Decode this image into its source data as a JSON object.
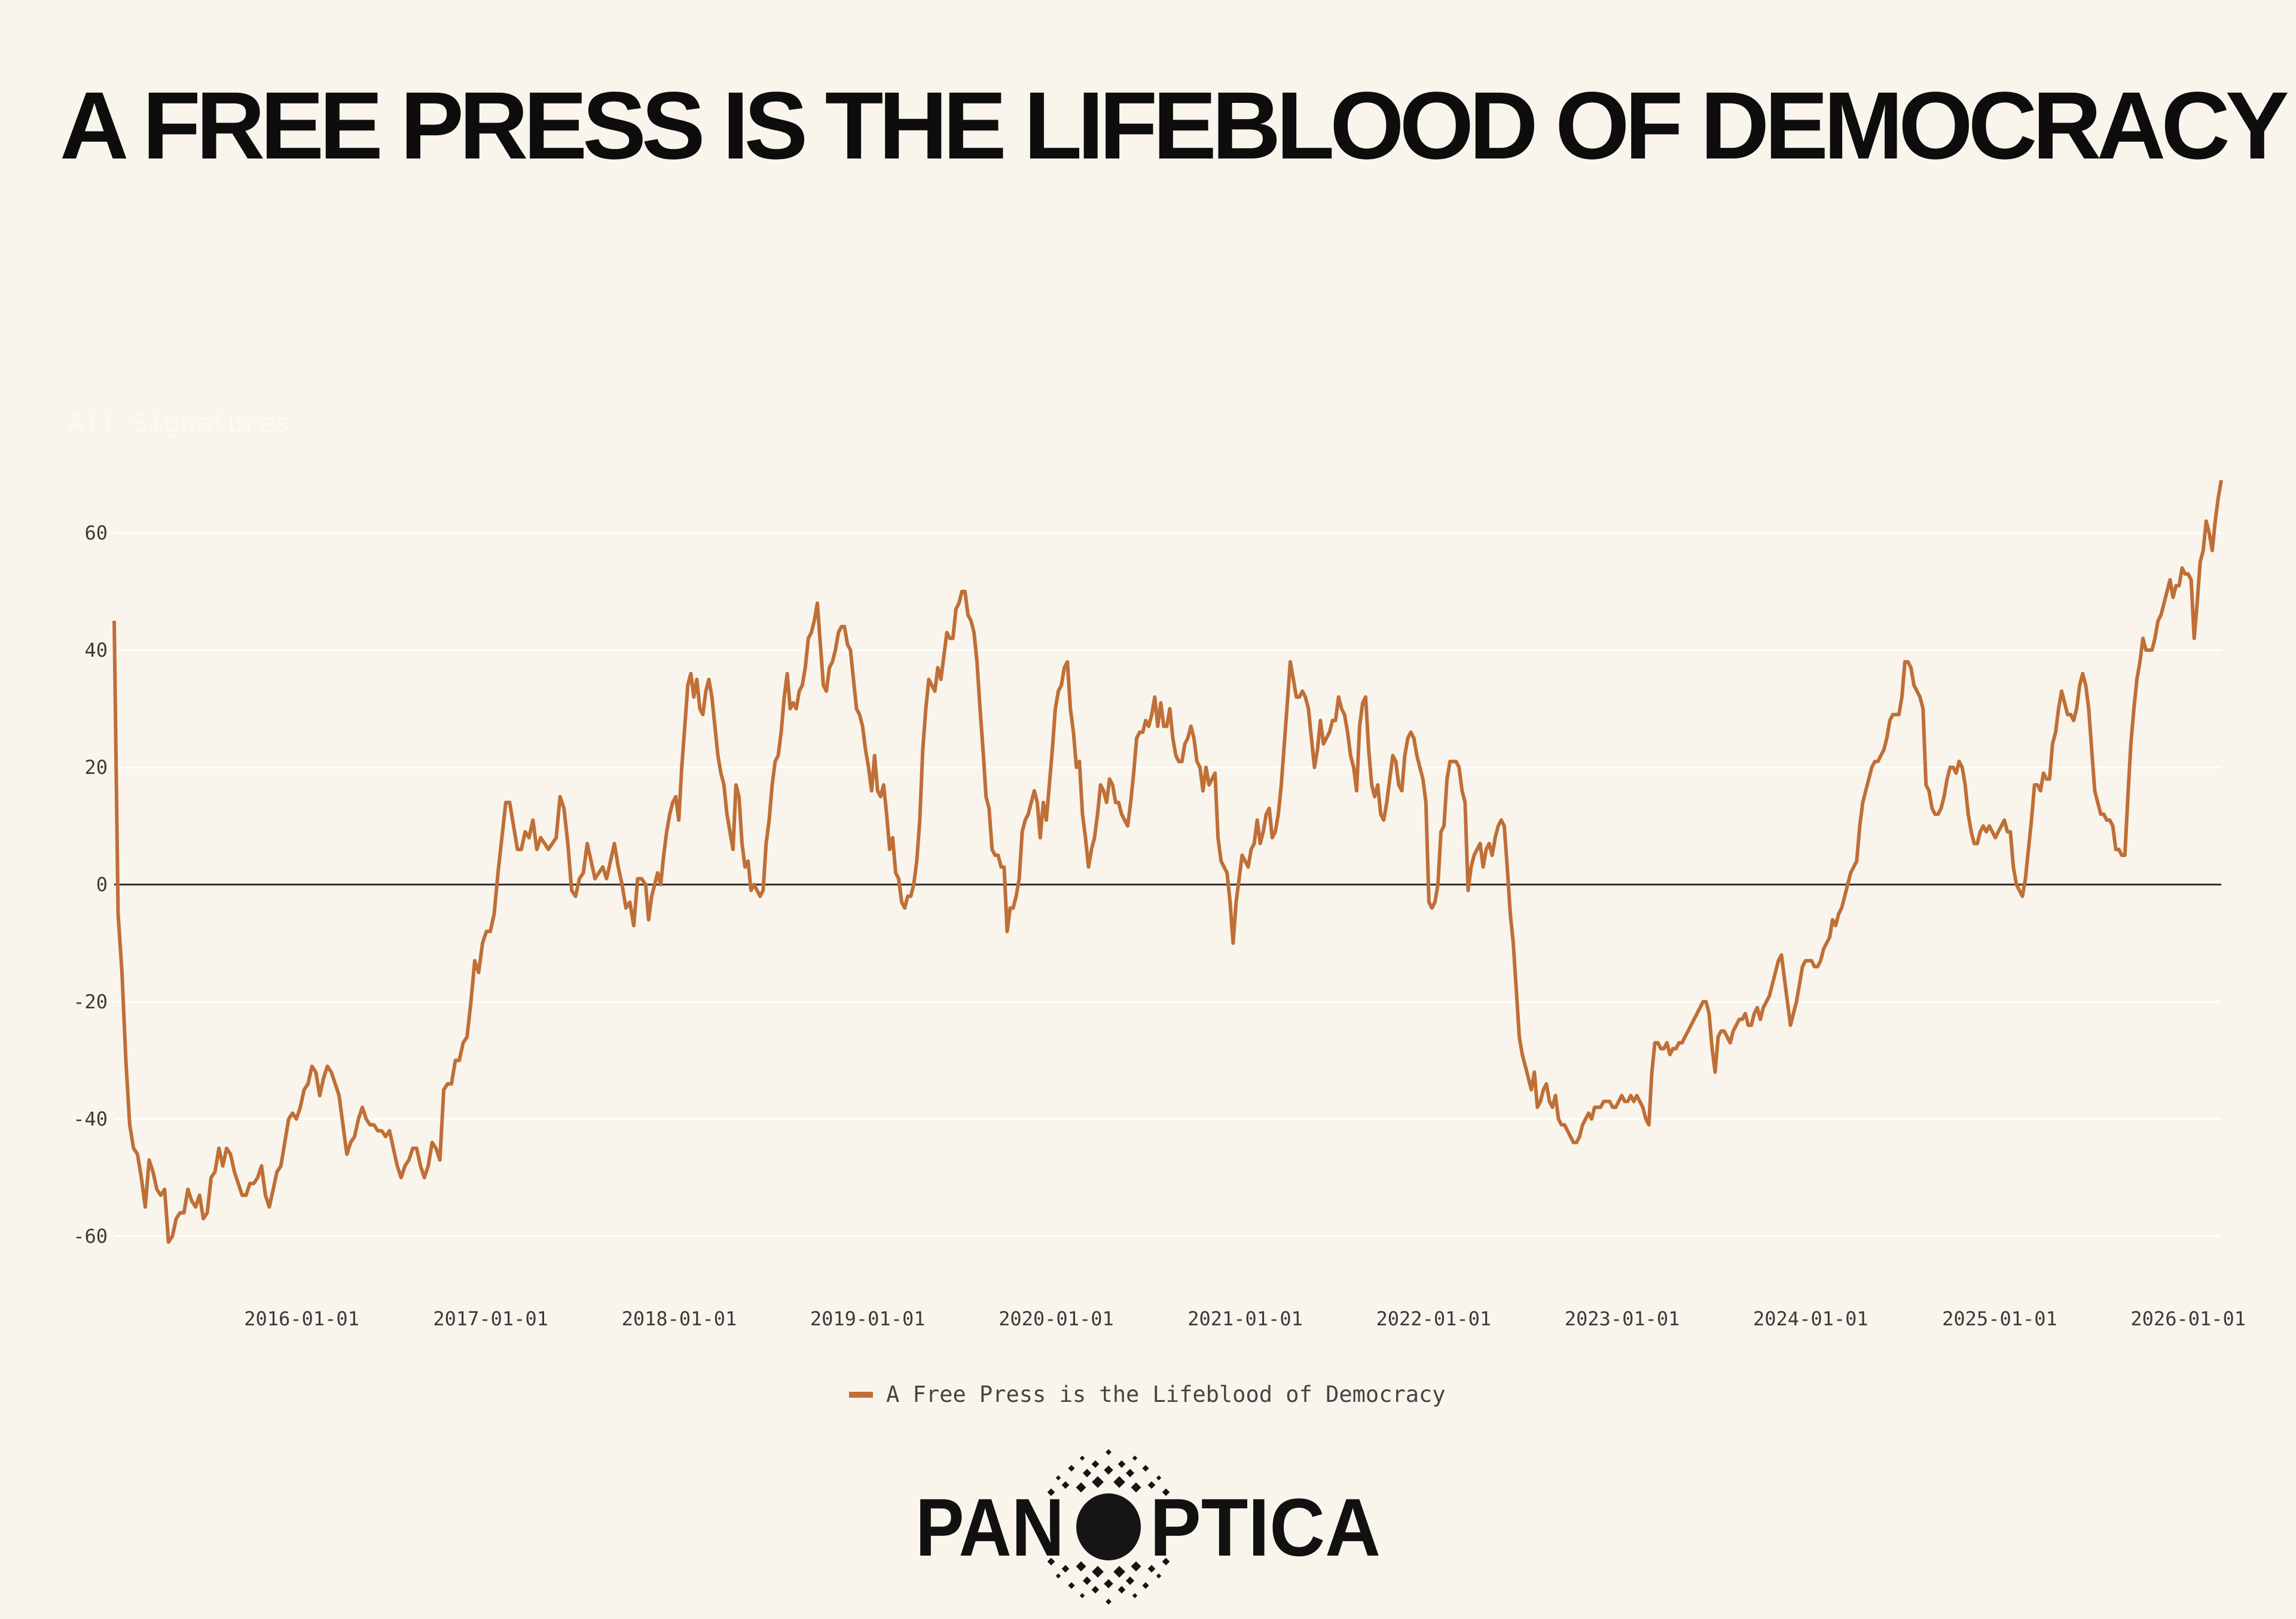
{
  "title": "A FREE PRESS IS THE LIFEBLOOD OF DEMOCRACY",
  "logo": {
    "text": "PANOPTICA"
  },
  "colors": {
    "background": "#f9f5ec",
    "series": "#bf6f37",
    "zero_line": "#2b2b2b",
    "grid": "#ffffff"
  },
  "chart_data": {
    "type": "line",
    "title": "",
    "xlabel": "",
    "ylabel": "All Signatures",
    "xlim": [
      "2015-01-03",
      "2026-03-06"
    ],
    "ylim": [
      -68,
      72
    ],
    "grid": true,
    "legend_position": "bottom-center",
    "x_ticks": [
      "2016-01-01",
      "2017-01-01",
      "2018-01-01",
      "2019-01-01",
      "2020-01-01",
      "2021-01-01",
      "2022-01-01",
      "2023-01-01",
      "2024-01-01",
      "2025-01-01",
      "2026-01-01"
    ],
    "y_ticks": [
      60,
      40,
      20,
      0,
      -20,
      -40,
      -60
    ],
    "series": [
      {
        "name": "A Free Press is the Lifeblood of Democracy",
        "segments": [
          {
            "start": "2015-01-03",
            "end": "2017-10-20",
            "values": [
              45,
              -5,
              -15,
              -30,
              -41,
              -45,
              -46,
              -50,
              -55,
              -47,
              -49,
              -52,
              -53,
              -52,
              -61,
              -60,
              -57,
              -56,
              -56,
              -52,
              -54,
              -55,
              -53,
              -57,
              -56,
              -50,
              -49,
              -45,
              -48,
              -45,
              -46,
              -49,
              -51,
              -53,
              -53,
              -51,
              -51,
              -50,
              -48,
              -53,
              -55,
              -52,
              -49,
              -48,
              -44,
              -40,
              -39,
              -40,
              -38,
              -35,
              -34,
              -31,
              -32,
              -36,
              -33,
              -31,
              -32,
              -34,
              -36,
              -41,
              -46,
              -44,
              -43,
              -40,
              -38,
              -40,
              -41,
              -41,
              -42,
              -42,
              -43,
              -42,
              -45,
              -48,
              -50,
              -48,
              -47,
              -45,
              -45,
              -48,
              -50,
              -48,
              -44,
              -45,
              -47,
              -35,
              -34,
              -34,
              -30,
              -30,
              -27,
              -26,
              -20,
              -13,
              -15,
              -10,
              -8,
              -8,
              -5,
              2,
              8,
              14,
              14,
              10,
              6,
              6,
              9,
              8,
              11,
              6,
              8,
              7,
              6,
              7,
              8,
              15,
              13,
              7,
              -1,
              -2,
              1,
              2,
              7,
              4,
              1,
              2,
              3,
              1,
              4,
              7,
              3,
              0,
              -4,
              -3,
              -7,
              1,
              1
            ]
          },
          {
            "start": "2017-10-28",
            "end": "2026-03-06",
            "values": [
              0,
              -6,
              -2,
              0,
              2,
              0,
              5,
              9,
              12,
              14,
              15,
              11,
              20,
              27,
              34,
              36,
              32,
              35,
              30,
              29,
              33,
              35,
              32,
              27,
              22,
              19,
              17,
              12,
              9,
              6,
              17,
              15,
              7,
              3,
              4,
              -1,
              0,
              -1,
              -2,
              -1,
              7,
              11,
              17,
              21,
              22,
              26,
              32,
              36,
              30,
              31,
              30,
              33,
              34,
              37,
              42,
              43,
              45,
              48,
              41,
              34,
              33,
              37,
              38,
              40,
              43,
              44,
              44,
              41,
              40,
              35,
              30,
              29,
              27,
              23,
              20,
              16,
              22,
              16,
              15,
              17,
              12,
              6,
              8,
              2,
              1,
              -3,
              -4,
              -2,
              -2,
              0,
              4,
              11,
              23,
              30,
              35,
              34,
              33,
              37,
              35,
              39,
              43,
              42,
              42,
              47,
              48,
              50,
              50,
              46,
              45,
              43,
              38,
              30,
              23,
              15,
              13,
              6,
              5,
              5,
              3,
              3,
              -8,
              -4,
              -4,
              -2,
              1,
              9,
              11,
              12,
              14,
              16,
              14,
              8,
              14,
              11,
              17,
              23,
              30,
              33,
              34,
              37,
              38,
              30,
              26,
              20,
              21,
              12,
              8,
              3,
              6,
              8,
              12,
              17,
              16,
              14,
              18,
              17,
              14,
              14,
              12,
              11,
              10,
              14,
              19,
              25,
              26,
              26,
              28,
              27,
              29,
              32,
              27,
              31,
              27,
              27,
              30,
              25,
              22,
              21,
              21,
              24,
              25,
              27,
              25,
              21,
              20,
              16,
              20,
              17,
              18,
              19,
              8,
              4,
              3,
              2,
              -3,
              -10,
              -3,
              1,
              5,
              4,
              3,
              6,
              7,
              11,
              7,
              9,
              12,
              13,
              8,
              9,
              12,
              17,
              24,
              31,
              38,
              35,
              32,
              32,
              33,
              32,
              30,
              25,
              20,
              23,
              28,
              24,
              25,
              26,
              28,
              28,
              32,
              30,
              29,
              26,
              22,
              20,
              16,
              27,
              31,
              32,
              23,
              17,
              15,
              17,
              12,
              11,
              14,
              18,
              22,
              21,
              17,
              16,
              22,
              25,
              26,
              25,
              22,
              20,
              18,
              14,
              -3,
              -4,
              -3,
              0,
              9,
              10,
              18,
              21,
              21,
              21,
              20,
              16,
              14,
              -1,
              3,
              5,
              6,
              7,
              3,
              6,
              7,
              5,
              8,
              10,
              11,
              10,
              3,
              -5,
              -10,
              -18,
              -26,
              -29,
              -31,
              -33,
              -35,
              -32,
              -38,
              -37,
              -35,
              -34,
              -37,
              -38,
              -36,
              -40,
              -41,
              -41,
              -42,
              -43,
              -44,
              -44,
              -43,
              -41,
              -40,
              -39,
              -40,
              -38,
              -38,
              -38,
              -37,
              -37,
              -37,
              -38,
              -38,
              -37,
              -36,
              -37,
              -37,
              -36,
              -37,
              -36,
              -37,
              -38,
              -40,
              -41,
              -32,
              -27,
              -27,
              -28,
              -28,
              -27,
              -29,
              -28,
              -28,
              -27,
              -27,
              -26,
              -25,
              -24,
              -23,
              -22,
              -21,
              -20,
              -20,
              -22,
              -28,
              -32,
              -26,
              -25,
              -25,
              -26,
              -27,
              -25,
              -24,
              -23,
              -23,
              -22,
              -24,
              -24,
              -22,
              -21,
              -23,
              -21,
              -20,
              -19,
              -17,
              -15,
              -13,
              -12,
              -16,
              -20,
              -24,
              -22,
              -20,
              -17,
              -14,
              -13,
              -13,
              -13,
              -14,
              -14,
              -13,
              -11,
              -10,
              -9,
              -6,
              -7,
              -5,
              -4,
              -2,
              0,
              2,
              3,
              4,
              10,
              14,
              16,
              18,
              20,
              21,
              21,
              22,
              23,
              25,
              28,
              29,
              29,
              29,
              32,
              38,
              38,
              37,
              34,
              33,
              32,
              30,
              17,
              16,
              13,
              12,
              12,
              13,
              15,
              18,
              20,
              20,
              19,
              21,
              20,
              17,
              12,
              9,
              7,
              7,
              9,
              10,
              9,
              10,
              9,
              8,
              9,
              10,
              11,
              9,
              9,
              3,
              0,
              -1,
              -2,
              1,
              6,
              11,
              17,
              17,
              16,
              19,
              18,
              18,
              24,
              26,
              30,
              33,
              31,
              29,
              29,
              28,
              30,
              34,
              36,
              34,
              30,
              23,
              16,
              14,
              12,
              12,
              11,
              11,
              10,
              6,
              6,
              5,
              5,
              15,
              24,
              30,
              35,
              38,
              42,
              40,
              40,
              40,
              42,
              45,
              46,
              48,
              50,
              52,
              49,
              51,
              51,
              54,
              53,
              53,
              52,
              42,
              48,
              55,
              57,
              62,
              60,
              57,
              62,
              66,
              69
            ]
          }
        ]
      }
    ]
  }
}
